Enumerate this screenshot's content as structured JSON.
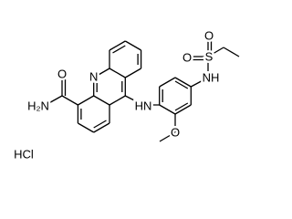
{
  "atoms": [
    {
      "label": "N"
    },
    {
      "label": "O"
    },
    {
      "label": "H₂N"
    },
    {
      "label": "HN"
    },
    {
      "label": "O"
    },
    {
      "label": "NH"
    },
    {
      "label": "S"
    },
    {
      "label": "O"
    },
    {
      "label": "O"
    }
  ],
  "salt": "HCl"
}
